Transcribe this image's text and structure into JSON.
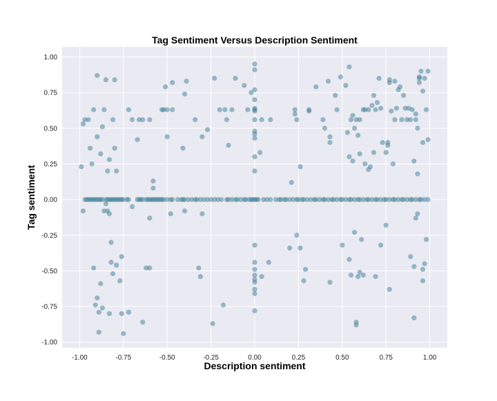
{
  "chart_data": {
    "type": "scatter",
    "title": "Tag Sentiment Versus Description Sentiment",
    "xlabel": "Description sentiment",
    "ylabel": "Tag sentiment",
    "xlim": [
      -1.1,
      1.1
    ],
    "ylim": [
      -1.04,
      1.07
    ],
    "xticks": [
      "-1.00",
      "-0.75",
      "-0.50",
      "-0.25",
      "0.00",
      "0.25",
      "0.50",
      "0.75",
      "1.00"
    ],
    "yticks": [
      "-1.00",
      "-0.75",
      "-0.50",
      "-0.25",
      "0.00",
      "0.25",
      "0.50",
      "0.75",
      "1.00"
    ],
    "grid": true,
    "colors": {
      "background": "#eaeaf2",
      "grid": "#ffffff",
      "point": "#3d7d94"
    },
    "points": [
      [
        -0.98,
        0.53
      ],
      [
        -0.97,
        0.56
      ],
      [
        -0.95,
        0.56
      ],
      [
        -0.94,
        0.36
      ],
      [
        -0.93,
        0.25
      ],
      [
        -0.92,
        0.63
      ],
      [
        -0.9,
        0.87
      ],
      [
        -0.9,
        0.44
      ],
      [
        -0.88,
        0.32
      ],
      [
        -0.87,
        0.51
      ],
      [
        -0.86,
        0.63
      ],
      [
        -0.85,
        0.84
      ],
      [
        -0.84,
        0.2
      ],
      [
        -0.83,
        0.28
      ],
      [
        -0.81,
        0.56
      ],
      [
        -0.8,
        0.36
      ],
      [
        -0.79,
        0.2
      ],
      [
        -0.8,
        0.84
      ],
      [
        -0.99,
        0.23
      ],
      [
        -0.67,
        0.42
      ],
      [
        -0.72,
        0.63
      ],
      [
        -0.7,
        0.56
      ],
      [
        -0.66,
        0.56
      ],
      [
        -0.64,
        0.56
      ],
      [
        -0.6,
        0.56
      ],
      [
        -0.58,
        0.13
      ],
      [
        -0.58,
        0.08
      ],
      [
        -0.56,
        0.0
      ],
      [
        -0.53,
        0.63
      ],
      [
        -0.52,
        0.63
      ],
      [
        -0.51,
        0.79
      ],
      [
        -0.5,
        0.63
      ],
      [
        -0.5,
        0.44
      ],
      [
        -0.47,
        0.82
      ],
      [
        -0.47,
        0.63
      ],
      [
        -0.4,
        0.74
      ],
      [
        -0.39,
        0.83
      ],
      [
        -0.41,
        0.36
      ],
      [
        -0.34,
        0.56
      ],
      [
        -0.3,
        0.44
      ],
      [
        -0.27,
        0.49
      ],
      [
        -0.23,
        0.85
      ],
      [
        -0.2,
        0.63
      ],
      [
        -0.17,
        0.63
      ],
      [
        -0.16,
        0.56
      ],
      [
        -0.15,
        0.38
      ],
      [
        -0.13,
        0.63
      ],
      [
        -0.11,
        0.85
      ],
      [
        -0.06,
        0.8
      ],
      [
        -0.04,
        0.63
      ],
      [
        -0.02,
        0.75
      ],
      [
        0.0,
        0.95
      ],
      [
        0.0,
        0.91
      ],
      [
        0.0,
        0.77
      ],
      [
        0.0,
        0.7
      ],
      [
        0.0,
        0.64
      ],
      [
        0.0,
        0.63
      ],
      [
        0.0,
        0.62
      ],
      [
        0.0,
        0.56
      ],
      [
        0.0,
        0.48
      ],
      [
        0.0,
        0.46
      ],
      [
        0.0,
        0.43
      ],
      [
        0.0,
        0.3
      ],
      [
        0.0,
        0.2
      ],
      [
        0.03,
        0.33
      ],
      [
        0.04,
        0.56
      ],
      [
        0.09,
        0.56
      ],
      [
        0.23,
        0.63
      ],
      [
        0.23,
        0.6
      ],
      [
        0.24,
        0.56
      ],
      [
        0.26,
        0.23
      ],
      [
        0.21,
        0.12
      ],
      [
        0.31,
        0.63
      ],
      [
        0.31,
        0.62
      ],
      [
        0.35,
        0.79
      ],
      [
        0.39,
        0.56
      ],
      [
        0.4,
        0.5
      ],
      [
        0.43,
        0.44
      ],
      [
        0.43,
        0.4
      ],
      [
        0.42,
        0.83
      ],
      [
        0.46,
        0.73
      ],
      [
        0.47,
        0.63
      ],
      [
        0.49,
        0.86
      ],
      [
        0.52,
        0.8
      ],
      [
        0.53,
        0.47
      ],
      [
        0.54,
        0.93
      ],
      [
        0.54,
        0.3
      ],
      [
        0.55,
        0.56
      ],
      [
        0.56,
        0.27
      ],
      [
        0.56,
        0.59
      ],
      [
        0.57,
        0.5
      ],
      [
        0.58,
        0.56
      ],
      [
        0.59,
        0.45
      ],
      [
        0.6,
        0.32
      ],
      [
        0.6,
        0.56
      ],
      [
        0.62,
        0.63
      ],
      [
        0.63,
        0.63
      ],
      [
        0.63,
        0.25
      ],
      [
        0.65,
        0.63
      ],
      [
        0.65,
        0.21
      ],
      [
        0.66,
        0.23
      ],
      [
        0.67,
        0.66
      ],
      [
        0.68,
        0.73
      ],
      [
        0.68,
        0.33
      ],
      [
        0.69,
        0.63
      ],
      [
        0.7,
        0.68
      ],
      [
        0.71,
        0.85
      ],
      [
        0.72,
        0.64
      ],
      [
        0.73,
        0.4
      ],
      [
        0.75,
        0.33
      ],
      [
        0.76,
        0.4
      ],
      [
        0.76,
        0.38
      ],
      [
        0.77,
        0.82
      ],
      [
        0.77,
        0.84
      ],
      [
        0.78,
        0.62
      ],
      [
        0.79,
        0.25
      ],
      [
        0.8,
        0.56
      ],
      [
        0.81,
        0.64
      ],
      [
        0.82,
        0.77
      ],
      [
        0.83,
        0.79
      ],
      [
        0.84,
        0.56
      ],
      [
        0.85,
        0.73
      ],
      [
        0.86,
        0.64
      ],
      [
        0.87,
        0.56
      ],
      [
        0.88,
        0.64
      ],
      [
        0.89,
        0.56
      ],
      [
        0.9,
        0.63
      ],
      [
        0.91,
        0.27
      ],
      [
        0.92,
        0.56
      ],
      [
        0.92,
        0.6
      ],
      [
        0.93,
        0.5
      ],
      [
        0.94,
        0.85
      ],
      [
        0.94,
        0.86
      ],
      [
        0.94,
        0.82
      ],
      [
        0.95,
        0.9
      ],
      [
        0.96,
        0.76
      ],
      [
        0.96,
        0.4
      ],
      [
        0.97,
        0.85
      ],
      [
        0.98,
        0.63
      ],
      [
        0.99,
        0.9
      ],
      [
        0.99,
        0.42
      ],
      [
        0.93,
        0.18
      ],
      [
        0.8,
        0.83
      ],
      [
        -0.98,
        -0.08
      ],
      [
        -0.92,
        -0.48
      ],
      [
        -0.91,
        -0.74
      ],
      [
        -0.9,
        -0.69
      ],
      [
        -0.89,
        -0.79
      ],
      [
        -0.88,
        -0.59
      ],
      [
        -0.87,
        -0.76
      ],
      [
        -0.86,
        -0.08
      ],
      [
        -0.85,
        -0.03
      ],
      [
        -0.84,
        -0.08
      ],
      [
        -0.83,
        -0.1
      ],
      [
        -0.82,
        -0.3
      ],
      [
        -0.82,
        -0.44
      ],
      [
        -0.81,
        -0.52
      ],
      [
        -0.79,
        -0.46
      ],
      [
        -0.77,
        -0.57
      ],
      [
        -0.76,
        -0.8
      ],
      [
        -0.75,
        -0.94
      ],
      [
        -0.76,
        -0.4
      ],
      [
        -0.89,
        -0.93
      ],
      [
        -0.83,
        -0.8
      ],
      [
        -0.72,
        -0.79
      ],
      [
        -0.7,
        -0.05
      ],
      [
        -0.64,
        -0.86
      ],
      [
        -0.62,
        -0.48
      ],
      [
        -0.6,
        -0.48
      ],
      [
        -0.6,
        -0.13
      ],
      [
        -0.48,
        -0.1
      ],
      [
        -0.4,
        -0.08
      ],
      [
        -0.32,
        -0.48
      ],
      [
        -0.31,
        -0.54
      ],
      [
        -0.3,
        -0.1
      ],
      [
        -0.24,
        -0.87
      ],
      [
        -0.18,
        -0.74
      ],
      [
        0.0,
        -0.32
      ],
      [
        0.0,
        -0.44
      ],
      [
        0.0,
        -0.49
      ],
      [
        0.0,
        -0.53
      ],
      [
        0.0,
        -0.56
      ],
      [
        0.0,
        -0.58
      ],
      [
        0.0,
        -0.63
      ],
      [
        0.0,
        -0.66
      ],
      [
        0.0,
        -0.78
      ],
      [
        0.04,
        -0.54
      ],
      [
        0.08,
        -0.44
      ],
      [
        0.2,
        -0.34
      ],
      [
        0.24,
        -0.25
      ],
      [
        0.26,
        -0.34
      ],
      [
        0.28,
        -0.57
      ],
      [
        0.29,
        -0.49
      ],
      [
        0.43,
        -0.58
      ],
      [
        0.5,
        -0.32
      ],
      [
        0.54,
        -0.42
      ],
      [
        0.55,
        -0.53
      ],
      [
        0.57,
        -0.23
      ],
      [
        0.58,
        -0.86
      ],
      [
        0.58,
        -0.88
      ],
      [
        0.59,
        -0.54
      ],
      [
        0.6,
        -0.51
      ],
      [
        0.61,
        -0.28
      ],
      [
        0.62,
        -0.53
      ],
      [
        0.69,
        -0.54
      ],
      [
        0.72,
        -0.32
      ],
      [
        0.77,
        -0.63
      ],
      [
        0.75,
        -0.18
      ],
      [
        0.89,
        -0.4
      ],
      [
        0.91,
        -0.47
      ],
      [
        0.92,
        -0.13
      ],
      [
        0.93,
        -0.1
      ],
      [
        0.91,
        -0.83
      ],
      [
        0.96,
        -0.49
      ],
      [
        0.96,
        -0.57
      ],
      [
        0.97,
        -0.45
      ],
      [
        0.98,
        -0.28
      ],
      [
        -0.97,
        0.0
      ],
      [
        -0.96,
        0.0
      ],
      [
        -0.95,
        0.0
      ],
      [
        -0.94,
        0.0
      ],
      [
        -0.93,
        0.0
      ],
      [
        -0.92,
        0.0
      ],
      [
        -0.91,
        0.0
      ],
      [
        -0.9,
        0.0
      ],
      [
        -0.89,
        0.0
      ],
      [
        -0.88,
        0.0
      ],
      [
        -0.87,
        0.0
      ],
      [
        -0.85,
        0.0
      ],
      [
        -0.84,
        0.0
      ],
      [
        -0.83,
        0.0
      ],
      [
        -0.82,
        0.0
      ],
      [
        -0.81,
        0.0
      ],
      [
        -0.8,
        0.0
      ],
      [
        -0.79,
        0.0
      ],
      [
        -0.78,
        0.0
      ],
      [
        -0.77,
        0.0
      ],
      [
        -0.76,
        0.0
      ],
      [
        -0.75,
        0.0
      ],
      [
        -0.73,
        0.0
      ],
      [
        -0.72,
        0.0
      ],
      [
        -0.67,
        0.0
      ],
      [
        -0.66,
        0.0
      ],
      [
        -0.65,
        0.0
      ],
      [
        -0.64,
        0.0
      ],
      [
        -0.62,
        0.0
      ],
      [
        -0.61,
        0.0
      ],
      [
        -0.6,
        0.0
      ],
      [
        -0.59,
        0.0
      ],
      [
        -0.58,
        0.0
      ],
      [
        -0.57,
        0.0
      ],
      [
        -0.55,
        0.0
      ],
      [
        -0.54,
        0.0
      ],
      [
        -0.53,
        0.0
      ],
      [
        -0.52,
        0.0
      ],
      [
        -0.5,
        0.0
      ],
      [
        -0.48,
        0.0
      ],
      [
        -0.47,
        0.0
      ],
      [
        -0.44,
        0.0
      ],
      [
        -0.42,
        0.0
      ],
      [
        -0.41,
        0.0
      ],
      [
        -0.4,
        0.0
      ],
      [
        -0.38,
        0.0
      ],
      [
        -0.36,
        0.0
      ],
      [
        -0.34,
        0.0
      ],
      [
        -0.33,
        0.0
      ],
      [
        -0.31,
        0.0
      ],
      [
        -0.29,
        0.0
      ],
      [
        -0.27,
        0.0
      ],
      [
        -0.25,
        0.0
      ],
      [
        -0.23,
        0.0
      ],
      [
        -0.21,
        0.0
      ],
      [
        -0.19,
        0.0
      ],
      [
        -0.16,
        0.0
      ],
      [
        -0.15,
        0.0
      ],
      [
        -0.13,
        0.0
      ],
      [
        -0.11,
        0.0
      ],
      [
        -0.1,
        0.0
      ],
      [
        -0.08,
        0.0
      ],
      [
        -0.06,
        0.0
      ],
      [
        -0.05,
        0.0
      ],
      [
        -0.03,
        0.0
      ],
      [
        -0.02,
        0.0
      ],
      [
        -0.01,
        0.0
      ],
      [
        0.0,
        0.0
      ],
      [
        0.01,
        0.0
      ],
      [
        0.02,
        0.0
      ],
      [
        0.05,
        0.0
      ],
      [
        0.07,
        0.0
      ],
      [
        0.09,
        0.0
      ],
      [
        0.12,
        0.0
      ],
      [
        0.14,
        0.0
      ],
      [
        0.15,
        0.0
      ],
      [
        0.17,
        0.0
      ],
      [
        0.18,
        0.0
      ],
      [
        0.2,
        0.0
      ],
      [
        0.22,
        0.0
      ],
      [
        0.24,
        0.0
      ],
      [
        0.25,
        0.0
      ],
      [
        0.27,
        0.0
      ],
      [
        0.28,
        0.0
      ],
      [
        0.3,
        0.0
      ],
      [
        0.32,
        0.0
      ],
      [
        0.34,
        0.0
      ],
      [
        0.35,
        0.0
      ],
      [
        0.37,
        0.0
      ],
      [
        0.39,
        0.0
      ],
      [
        0.4,
        0.0
      ],
      [
        0.42,
        0.0
      ],
      [
        0.44,
        0.0
      ],
      [
        0.45,
        0.0
      ],
      [
        0.47,
        0.0
      ],
      [
        0.49,
        0.0
      ],
      [
        0.5,
        0.0
      ],
      [
        0.52,
        0.0
      ],
      [
        0.54,
        0.0
      ],
      [
        0.55,
        0.0
      ],
      [
        0.57,
        0.0
      ],
      [
        0.59,
        0.0
      ],
      [
        0.6,
        0.0
      ],
      [
        0.62,
        0.0
      ],
      [
        0.64,
        0.0
      ],
      [
        0.65,
        0.0
      ],
      [
        0.67,
        0.0
      ],
      [
        0.69,
        0.0
      ],
      [
        0.7,
        0.0
      ],
      [
        0.72,
        0.0
      ],
      [
        0.74,
        0.0
      ],
      [
        0.75,
        0.0
      ],
      [
        0.77,
        0.0
      ],
      [
        0.79,
        0.0
      ],
      [
        0.8,
        0.0
      ],
      [
        0.82,
        0.0
      ],
      [
        0.84,
        0.0
      ],
      [
        0.85,
        0.0
      ],
      [
        0.87,
        0.0
      ],
      [
        0.89,
        0.0
      ],
      [
        0.9,
        0.0
      ],
      [
        0.92,
        0.0
      ],
      [
        0.94,
        0.0
      ],
      [
        0.95,
        0.0
      ],
      [
        0.97,
        0.0
      ],
      [
        0.99,
        0.0
      ]
    ]
  }
}
